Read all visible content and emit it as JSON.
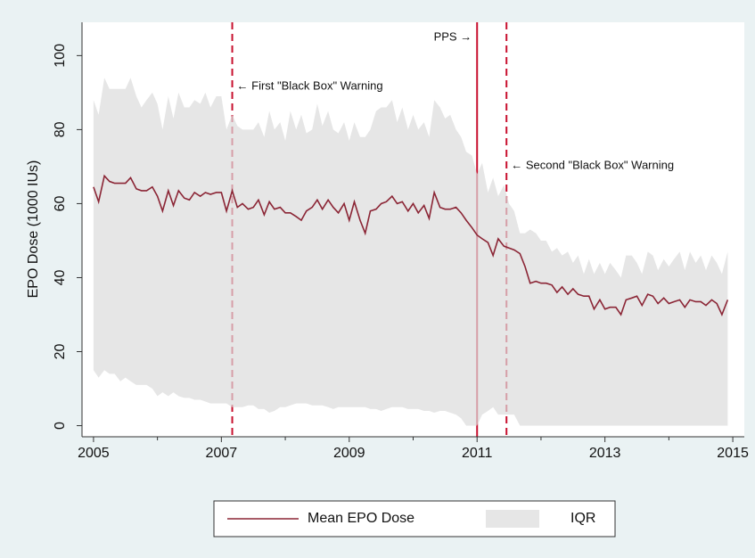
{
  "chart_data": {
    "type": "line",
    "ylabel": "EPO Dose (1000 IUs)",
    "xlim": [
      2004.82,
      2015.18
    ],
    "ylim": [
      -3,
      109
    ],
    "xticks": [
      2005,
      2007,
      2009,
      2011,
      2013,
      2015
    ],
    "xticks_minor": [
      2006,
      2008,
      2010,
      2012,
      2014
    ],
    "yticks": [
      0,
      20,
      40,
      60,
      80,
      100
    ],
    "grid": false,
    "x": [
      2005,
      2005.08,
      2005.17,
      2005.25,
      2005.33,
      2005.42,
      2005.5,
      2005.58,
      2005.67,
      2005.75,
      2005.83,
      2005.92,
      2006,
      2006.08,
      2006.17,
      2006.25,
      2006.33,
      2006.42,
      2006.5,
      2006.58,
      2006.67,
      2006.75,
      2006.83,
      2006.92,
      2007,
      2007.08,
      2007.17,
      2007.25,
      2007.33,
      2007.42,
      2007.5,
      2007.58,
      2007.67,
      2007.75,
      2007.83,
      2007.92,
      2008,
      2008.08,
      2008.17,
      2008.25,
      2008.33,
      2008.42,
      2008.5,
      2008.58,
      2008.67,
      2008.75,
      2008.83,
      2008.92,
      2009,
      2009.08,
      2009.17,
      2009.25,
      2009.33,
      2009.42,
      2009.5,
      2009.58,
      2009.67,
      2009.75,
      2009.83,
      2009.92,
      2010,
      2010.08,
      2010.17,
      2010.25,
      2010.33,
      2010.42,
      2010.5,
      2010.58,
      2010.67,
      2010.75,
      2010.83,
      2010.92,
      2011,
      2011.08,
      2011.17,
      2011.25,
      2011.33,
      2011.42,
      2011.5,
      2011.58,
      2011.67,
      2011.75,
      2011.83,
      2011.92,
      2012,
      2012.08,
      2012.17,
      2012.25,
      2012.33,
      2012.42,
      2012.5,
      2012.58,
      2012.67,
      2012.75,
      2012.83,
      2012.92,
      2013,
      2013.08,
      2013.17,
      2013.25,
      2013.33,
      2013.42,
      2013.5,
      2013.58,
      2013.67,
      2013.75,
      2013.83,
      2013.92,
      2014,
      2014.08,
      2014.17,
      2014.25,
      2014.33,
      2014.42,
      2014.5,
      2014.58,
      2014.67,
      2014.75,
      2014.83,
      2014.92
    ],
    "band": {
      "name": "IQR",
      "color": "#dcdcdc",
      "upper": [
        88,
        84,
        94,
        91,
        91,
        91,
        91,
        94,
        89,
        86,
        88,
        90,
        87,
        80,
        89,
        83,
        90,
        86,
        86,
        88,
        87,
        90,
        86,
        89,
        89,
        80,
        84,
        81,
        80,
        80,
        80,
        82,
        78,
        85,
        80,
        82,
        77,
        85,
        80,
        84,
        79,
        80,
        87,
        81,
        85,
        80,
        79,
        82,
        77,
        82,
        78,
        78,
        80,
        85,
        86,
        86,
        88,
        82,
        86,
        80,
        84,
        80,
        82,
        78,
        88,
        86,
        83,
        84,
        80,
        78,
        74,
        73,
        68,
        71,
        63,
        67,
        62,
        65,
        60,
        58,
        52,
        52,
        53,
        52,
        50,
        50,
        47,
        48,
        46,
        47,
        44,
        46,
        41,
        45,
        41,
        44,
        41,
        44,
        42,
        40,
        46,
        46,
        44,
        41,
        47,
        46,
        42,
        45,
        43,
        45,
        47,
        42,
        47,
        44,
        46,
        42,
        46,
        44,
        41,
        47
      ],
      "lower": [
        15,
        13,
        15,
        14,
        14,
        12,
        13,
        12,
        11,
        11,
        11,
        10,
        8,
        9,
        8,
        9,
        8,
        7.5,
        7.5,
        7,
        7,
        6.5,
        6,
        6,
        6,
        6,
        5,
        5,
        5,
        5.5,
        5.5,
        4.5,
        4.5,
        3.5,
        4,
        5,
        5,
        5.5,
        6,
        6,
        6,
        5.5,
        5.5,
        5.5,
        5,
        4.5,
        5,
        5,
        5,
        5,
        5,
        5,
        4.5,
        4.5,
        4,
        4.5,
        5,
        5,
        5,
        4.5,
        4.5,
        4.5,
        4,
        4,
        3.5,
        4,
        4,
        3.5,
        3,
        2,
        0,
        0,
        0,
        3,
        4,
        5,
        3,
        3,
        3,
        3,
        0,
        0,
        0,
        0,
        0,
        0,
        0,
        0,
        0,
        0,
        0,
        0,
        0,
        0,
        0,
        0,
        0,
        0,
        0,
        0,
        0,
        0,
        0,
        0,
        0,
        0,
        0,
        0,
        0,
        0,
        0,
        0,
        0,
        0,
        0,
        0,
        0,
        0,
        0,
        0
      ]
    },
    "series": [
      {
        "name": "Mean EPO Dose",
        "color": "#8b2535",
        "values": [
          64.5,
          60.5,
          67.5,
          66,
          65.5,
          65.5,
          65.5,
          67,
          64,
          63.5,
          63.5,
          64.5,
          62,
          58,
          63.5,
          59.5,
          63.5,
          61.5,
          61,
          63,
          62,
          63,
          62.5,
          63,
          63,
          58,
          63.5,
          59,
          60,
          58.5,
          59,
          61,
          57,
          60.5,
          58.5,
          59,
          57.5,
          57.5,
          56.5,
          55.5,
          58,
          59,
          61,
          58.5,
          61,
          59,
          57.5,
          60,
          55.5,
          60.5,
          55.5,
          52,
          58,
          58.5,
          60,
          60.5,
          62,
          60,
          60.5,
          58,
          60,
          57.5,
          59.5,
          56,
          63,
          59,
          58.5,
          58.5,
          59,
          57.5,
          55.5,
          53.5,
          51.5,
          50.5,
          49.5,
          46,
          50.5,
          48.5,
          48,
          47.5,
          46.5,
          43,
          38.5,
          39,
          38.5,
          38.5,
          38,
          36,
          37.5,
          35.5,
          37,
          35.5,
          35,
          35,
          31.5,
          34,
          31.5,
          32,
          32,
          30,
          34,
          34.5,
          35,
          32.5,
          35.5,
          35,
          33,
          34.5,
          33,
          33.5,
          34,
          32,
          34,
          33.5,
          33.5,
          32.5,
          34,
          33,
          30,
          34
        ]
      }
    ],
    "vlines": [
      {
        "x": 2007.17,
        "style": "dashed",
        "color": "#c8102e",
        "label": "← First \"Black Box\" Warning"
      },
      {
        "x": 2011.0,
        "style": "solid",
        "color": "#c8102e",
        "label": "PPS →"
      },
      {
        "x": 2011.46,
        "style": "dashed",
        "color": "#c8102e",
        "label": "← Second \"Black Box\" Warning"
      }
    ]
  }
}
